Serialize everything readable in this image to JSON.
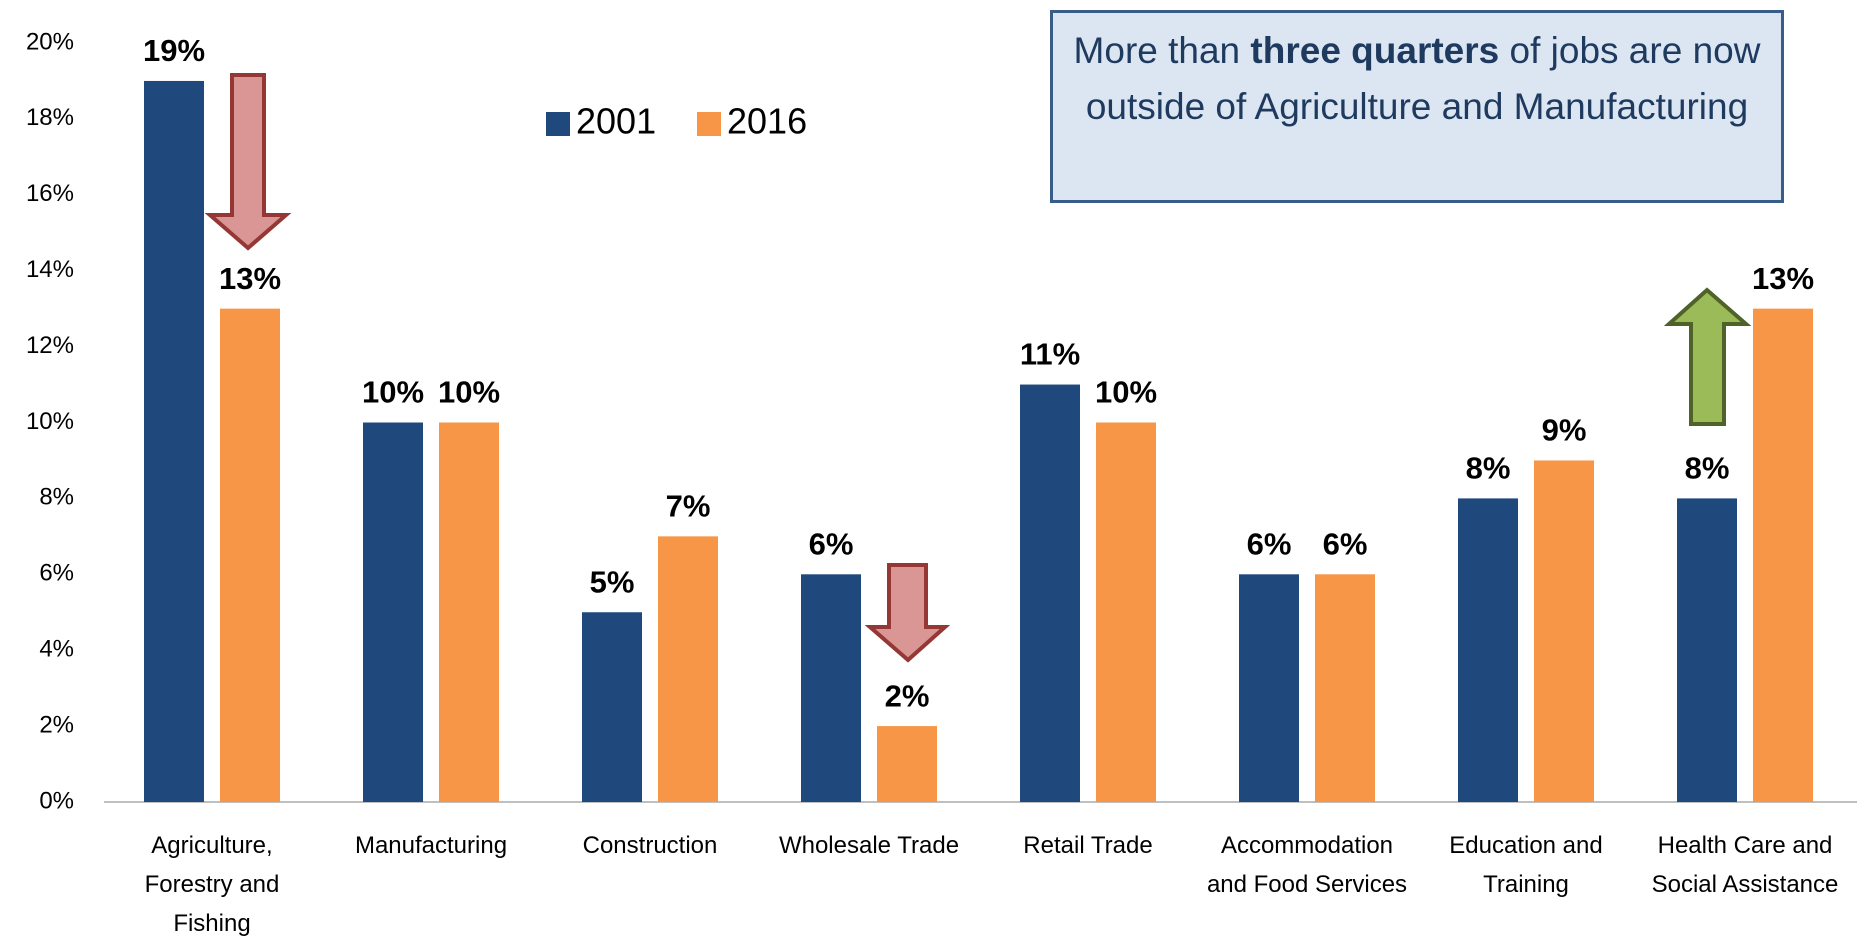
{
  "chart_data": {
    "type": "bar",
    "categories": [
      "Agriculture, Forestry and Fishing",
      "Manufacturing",
      "Construction",
      "Wholesale Trade",
      "Retail Trade",
      "Accommodation and Food Services",
      "Education and Training",
      "Health Care and Social Assistance"
    ],
    "series": [
      {
        "name": "2001",
        "color": "#1f497d",
        "values": [
          19,
          10,
          5,
          6,
          11,
          6,
          8,
          8
        ],
        "value_labels": [
          "19%",
          "10%",
          "5%",
          "6%",
          "11%",
          "6%",
          "8%",
          "8%"
        ]
      },
      {
        "name": "2016",
        "color": "#f79646",
        "values": [
          13,
          10,
          7,
          2,
          10,
          6,
          9,
          13
        ],
        "value_labels": [
          "13%",
          "10%",
          "7%",
          "2%",
          "10%",
          "6%",
          "9%",
          "13%"
        ]
      }
    ],
    "ylim": [
      0,
      20
    ],
    "yticks": [
      {
        "value": 0,
        "label": "0%"
      },
      {
        "value": 2,
        "label": "2%"
      },
      {
        "value": 4,
        "label": "4%"
      },
      {
        "value": 6,
        "label": "6%"
      },
      {
        "value": 8,
        "label": "8%"
      },
      {
        "value": 10,
        "label": "10%"
      },
      {
        "value": 12,
        "label": "12%"
      },
      {
        "value": 14,
        "label": "14%"
      },
      {
        "value": 16,
        "label": "16%"
      },
      {
        "value": 18,
        "label": "18%"
      },
      {
        "value": 20,
        "label": "20%"
      }
    ],
    "grid": false,
    "annotation": [
      "More than",
      "three quarters",
      "of jobs are now outside of Agriculture and Manufacturing"
    ]
  }
}
